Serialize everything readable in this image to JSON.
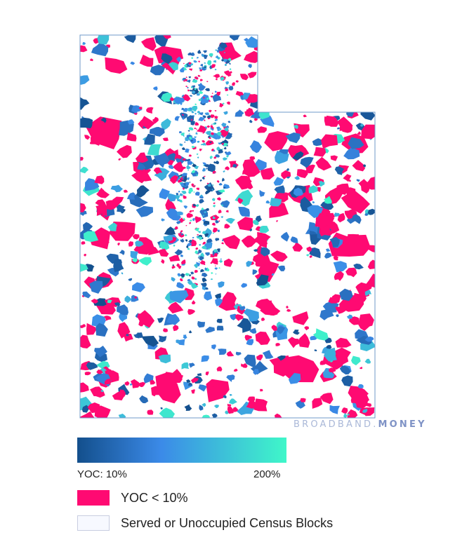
{
  "watermark": {
    "prefix": "BROADBAND.",
    "highlight": "MONEY"
  },
  "colors": {
    "yoc_low": "#ff0a72",
    "gradient_start": "#134f8c",
    "gradient_mid": "#3b8ae8",
    "gradient_end": "#3ff7c9",
    "served": "#f7f9ff",
    "served_border": "#c8cde0",
    "boundary": "#6f98c8"
  },
  "legend": {
    "gradient_min_label": "YOC: 10%",
    "gradient_max_label": "200%",
    "items": [
      {
        "label": "YOC < 10%",
        "swatch_icon": "pink-swatch-icon"
      },
      {
        "label": "Served or Unoccupied Census Blocks",
        "swatch_icon": "white-swatch-icon"
      }
    ]
  }
}
